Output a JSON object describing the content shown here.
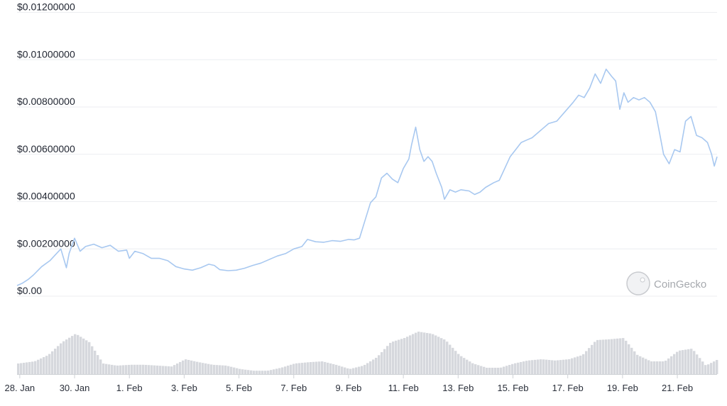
{
  "chart_data": {
    "type": "line",
    "title": "",
    "xlabel": "",
    "ylabel": "",
    "ylim": [
      0,
      0.012
    ],
    "y_ticks": [
      "$0.00",
      "$0.00200000",
      "$0.00400000",
      "$0.00600000",
      "$0.00800000",
      "$0.01000000",
      "$0.01200000"
    ],
    "y_tick_values": [
      0,
      0.002,
      0.004,
      0.006,
      0.008,
      0.01,
      0.012
    ],
    "x_ticks": [
      "28. Jan",
      "30. Jan",
      "1. Feb",
      "3. Feb",
      "5. Feb",
      "7. Feb",
      "9. Feb",
      "11. Feb",
      "13. Feb",
      "15. Feb",
      "17. Feb",
      "19. Feb",
      "21. Feb"
    ],
    "x_tick_days": [
      0,
      2,
      4,
      6,
      8,
      10,
      12,
      14,
      16,
      18,
      20,
      22,
      24
    ],
    "x_range_days": [
      -0.1,
      25.45
    ],
    "grid": true,
    "legend": "none",
    "line_color": "#a8c8f0",
    "volume_color": "#d6d8dd",
    "series": [
      {
        "points": [
          [
            -0.1,
            0.00045
          ],
          [
            0.1,
            0.00055
          ],
          [
            0.3,
            0.0007
          ],
          [
            0.5,
            0.0009
          ],
          [
            0.8,
            0.00125
          ],
          [
            1.1,
            0.0015
          ],
          [
            1.3,
            0.00175
          ],
          [
            1.5,
            0.002
          ],
          [
            1.7,
            0.0012
          ],
          [
            1.8,
            0.0018
          ],
          [
            2.0,
            0.00245
          ],
          [
            2.2,
            0.0019
          ],
          [
            2.4,
            0.0021
          ],
          [
            2.7,
            0.0022
          ],
          [
            3.0,
            0.00205
          ],
          [
            3.3,
            0.00215
          ],
          [
            3.6,
            0.0019
          ],
          [
            3.9,
            0.00195
          ],
          [
            4.0,
            0.0016
          ],
          [
            4.2,
            0.0019
          ],
          [
            4.5,
            0.0018
          ],
          [
            4.8,
            0.0016
          ],
          [
            5.1,
            0.0016
          ],
          [
            5.4,
            0.0015
          ],
          [
            5.7,
            0.00125
          ],
          [
            6.0,
            0.00115
          ],
          [
            6.3,
            0.0011
          ],
          [
            6.6,
            0.0012
          ],
          [
            6.9,
            0.00135
          ],
          [
            7.1,
            0.0013
          ],
          [
            7.3,
            0.00112
          ],
          [
            7.6,
            0.00108
          ],
          [
            7.9,
            0.0011
          ],
          [
            8.2,
            0.00118
          ],
          [
            8.5,
            0.0013
          ],
          [
            8.8,
            0.0014
          ],
          [
            9.1,
            0.00155
          ],
          [
            9.4,
            0.0017
          ],
          [
            9.7,
            0.0018
          ],
          [
            10.0,
            0.002
          ],
          [
            10.3,
            0.0021
          ],
          [
            10.5,
            0.0024
          ],
          [
            10.8,
            0.0023
          ],
          [
            11.1,
            0.00228
          ],
          [
            11.4,
            0.00235
          ],
          [
            11.7,
            0.00232
          ],
          [
            12.0,
            0.0024
          ],
          [
            12.2,
            0.00238
          ],
          [
            12.4,
            0.00245
          ],
          [
            12.6,
            0.0032
          ],
          [
            12.8,
            0.00395
          ],
          [
            13.0,
            0.0042
          ],
          [
            13.2,
            0.005
          ],
          [
            13.4,
            0.0052
          ],
          [
            13.6,
            0.00495
          ],
          [
            13.8,
            0.0048
          ],
          [
            14.0,
            0.0054
          ],
          [
            14.2,
            0.0058
          ],
          [
            14.3,
            0.0064
          ],
          [
            14.45,
            0.00715
          ],
          [
            14.6,
            0.0062
          ],
          [
            14.75,
            0.0057
          ],
          [
            14.9,
            0.0059
          ],
          [
            15.05,
            0.0057
          ],
          [
            15.2,
            0.0052
          ],
          [
            15.4,
            0.0046
          ],
          [
            15.5,
            0.0041
          ],
          [
            15.7,
            0.0045
          ],
          [
            15.9,
            0.0044
          ],
          [
            16.1,
            0.0045
          ],
          [
            16.4,
            0.00445
          ],
          [
            16.6,
            0.0043
          ],
          [
            16.8,
            0.0044
          ],
          [
            17.0,
            0.0046
          ],
          [
            17.3,
            0.0048
          ],
          [
            17.5,
            0.0049
          ],
          [
            17.7,
            0.0054
          ],
          [
            17.9,
            0.0059
          ],
          [
            18.1,
            0.0062
          ],
          [
            18.3,
            0.0065
          ],
          [
            18.5,
            0.0066
          ],
          [
            18.7,
            0.0067
          ],
          [
            19.0,
            0.007
          ],
          [
            19.3,
            0.0073
          ],
          [
            19.6,
            0.0074
          ],
          [
            19.9,
            0.0078
          ],
          [
            20.2,
            0.0082
          ],
          [
            20.4,
            0.0085
          ],
          [
            20.6,
            0.0084
          ],
          [
            20.8,
            0.0088
          ],
          [
            21.0,
            0.0094
          ],
          [
            21.2,
            0.009
          ],
          [
            21.4,
            0.0096
          ],
          [
            21.6,
            0.0093
          ],
          [
            21.75,
            0.0091
          ],
          [
            21.9,
            0.0079
          ],
          [
            22.05,
            0.0086
          ],
          [
            22.2,
            0.0082
          ],
          [
            22.4,
            0.0084
          ],
          [
            22.6,
            0.0083
          ],
          [
            22.8,
            0.0084
          ],
          [
            23.0,
            0.0082
          ],
          [
            23.2,
            0.0078
          ],
          [
            23.35,
            0.0069
          ],
          [
            23.5,
            0.006
          ],
          [
            23.7,
            0.0056
          ],
          [
            23.9,
            0.0062
          ],
          [
            24.1,
            0.0061
          ],
          [
            24.3,
            0.0074
          ],
          [
            24.5,
            0.0076
          ],
          [
            24.7,
            0.0068
          ],
          [
            24.9,
            0.0067
          ],
          [
            25.1,
            0.0065
          ],
          [
            25.25,
            0.006
          ],
          [
            25.35,
            0.0055
          ],
          [
            25.45,
            0.0059
          ]
        ]
      }
    ],
    "volume": [
      [
        -0.1,
        0.25
      ],
      [
        0.5,
        0.3
      ],
      [
        1.0,
        0.45
      ],
      [
        1.5,
        0.75
      ],
      [
        2.0,
        0.95
      ],
      [
        2.5,
        0.75
      ],
      [
        3.0,
        0.25
      ],
      [
        3.5,
        0.2
      ],
      [
        4.0,
        0.22
      ],
      [
        4.5,
        0.22
      ],
      [
        5.0,
        0.2
      ],
      [
        5.5,
        0.18
      ],
      [
        6.0,
        0.35
      ],
      [
        6.5,
        0.28
      ],
      [
        7.0,
        0.22
      ],
      [
        7.5,
        0.2
      ],
      [
        8.0,
        0.12
      ],
      [
        8.5,
        0.08
      ],
      [
        9.0,
        0.08
      ],
      [
        9.5,
        0.15
      ],
      [
        10.0,
        0.25
      ],
      [
        10.5,
        0.28
      ],
      [
        11.0,
        0.3
      ],
      [
        11.5,
        0.22
      ],
      [
        12.0,
        0.12
      ],
      [
        12.5,
        0.2
      ],
      [
        13.0,
        0.4
      ],
      [
        13.5,
        0.75
      ],
      [
        14.0,
        0.85
      ],
      [
        14.5,
        1.0
      ],
      [
        15.0,
        0.95
      ],
      [
        15.5,
        0.8
      ],
      [
        16.0,
        0.45
      ],
      [
        16.5,
        0.25
      ],
      [
        17.0,
        0.15
      ],
      [
        17.5,
        0.15
      ],
      [
        18.0,
        0.25
      ],
      [
        18.5,
        0.32
      ],
      [
        19.0,
        0.35
      ],
      [
        19.5,
        0.32
      ],
      [
        20.0,
        0.35
      ],
      [
        20.5,
        0.45
      ],
      [
        21.0,
        0.8
      ],
      [
        21.5,
        0.82
      ],
      [
        22.0,
        0.85
      ],
      [
        22.5,
        0.45
      ],
      [
        23.0,
        0.3
      ],
      [
        23.5,
        0.3
      ],
      [
        24.0,
        0.55
      ],
      [
        24.5,
        0.6
      ],
      [
        25.0,
        0.2
      ],
      [
        25.45,
        0.35
      ]
    ]
  },
  "watermark": {
    "brand": "CoinGecko",
    "icon": "gecko-logo-icon"
  }
}
